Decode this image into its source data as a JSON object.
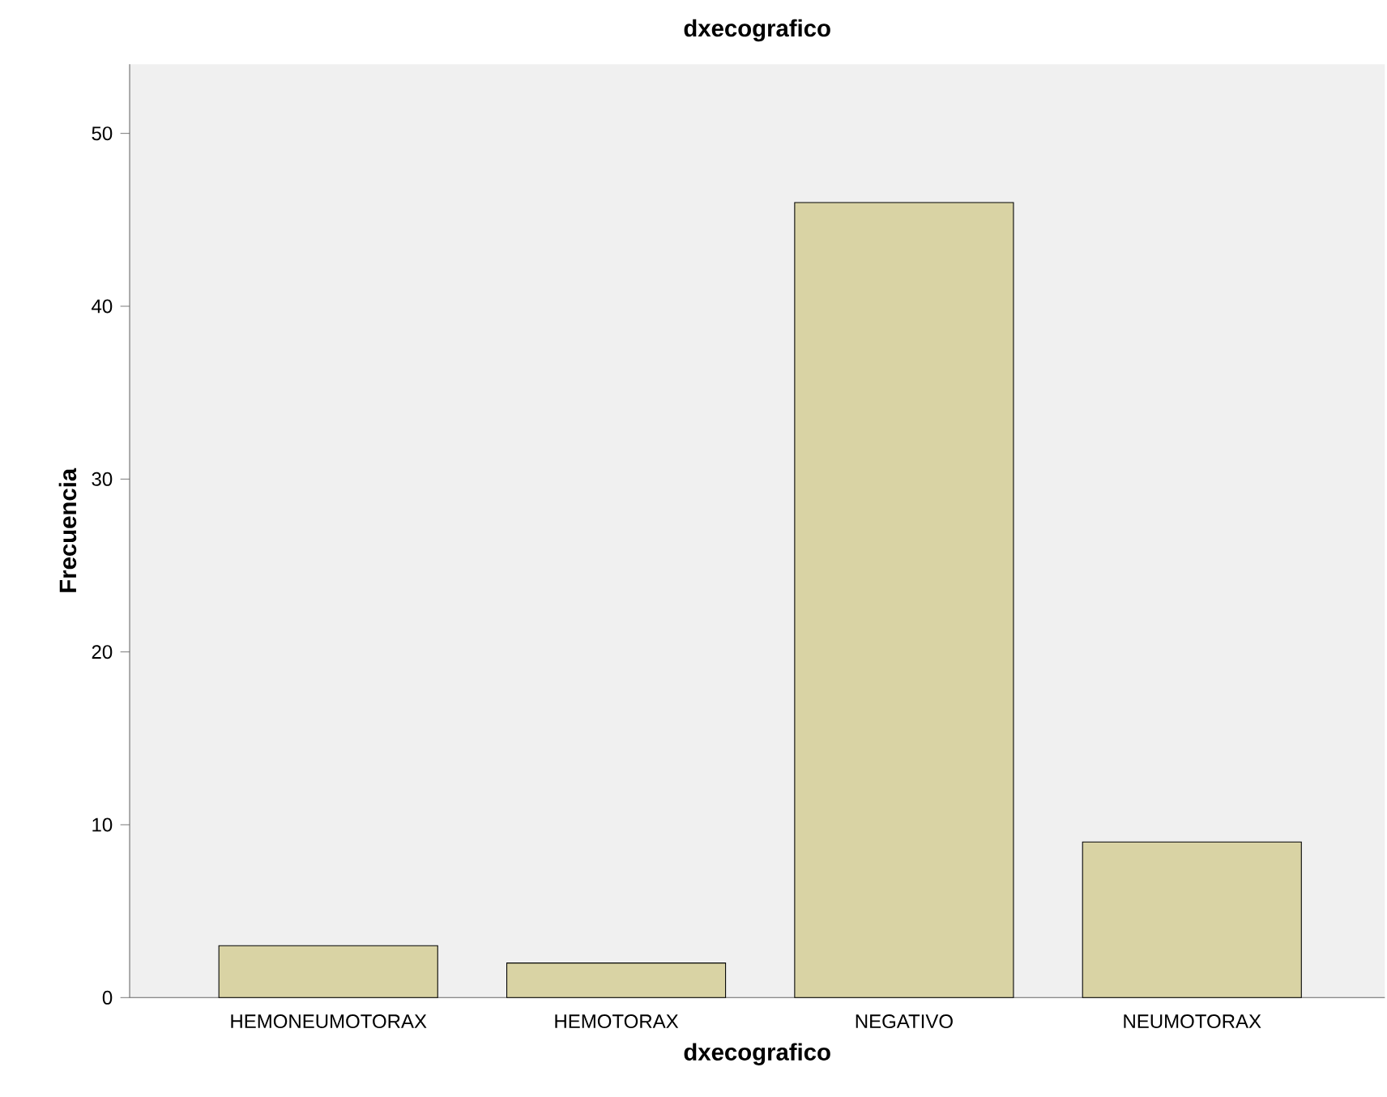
{
  "chart_data": {
    "type": "bar",
    "title": "dxecografico",
    "xlabel": "dxecografico",
    "ylabel": "Frecuencia",
    "categories": [
      "HEMONEUMOTORAX",
      "HEMOTORAX",
      "NEGATIVO",
      "NEUMOTORAX"
    ],
    "values": [
      3,
      2,
      46,
      9
    ],
    "color": "#d9d3a4",
    "ylim": [
      0,
      54
    ],
    "yticks": [
      0,
      10,
      20,
      30,
      40,
      50
    ]
  }
}
